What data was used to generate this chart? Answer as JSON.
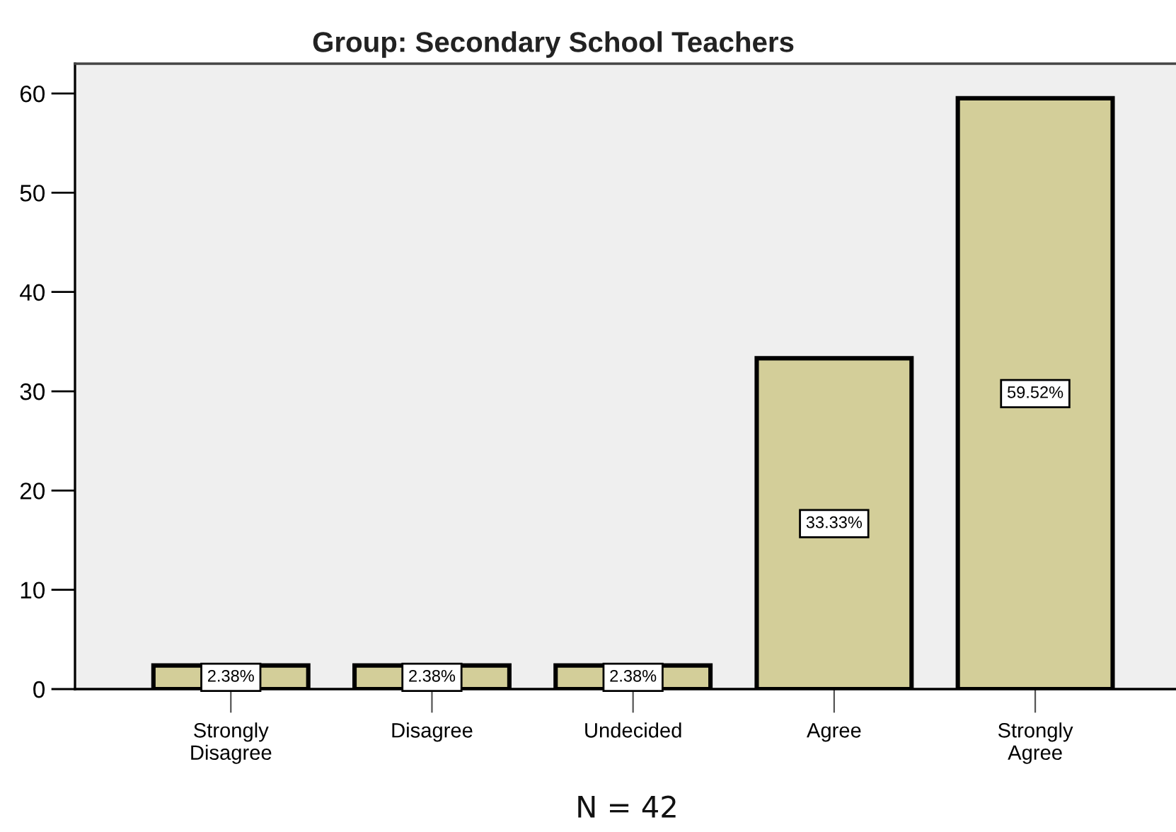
{
  "chart_data": {
    "type": "bar",
    "title": "Group: Secondary School Teachers",
    "categories": [
      "Strongly\nDisagree",
      "Disagree",
      "Undecided",
      "Agree",
      "Strongly\nAgree"
    ],
    "values": [
      2.38,
      2.38,
      2.38,
      33.33,
      59.52
    ],
    "color": "#d3ce99",
    "value_labels": [
      "2.38%",
      "2.38%",
      "2.38%",
      "33.33%",
      "59.52%"
    ],
    "ylim": [
      0,
      63
    ],
    "yticks": [
      0,
      10,
      20,
      30,
      40,
      50,
      60
    ],
    "grid": false,
    "legend": false,
    "annotations": [
      "N = 42"
    ]
  }
}
